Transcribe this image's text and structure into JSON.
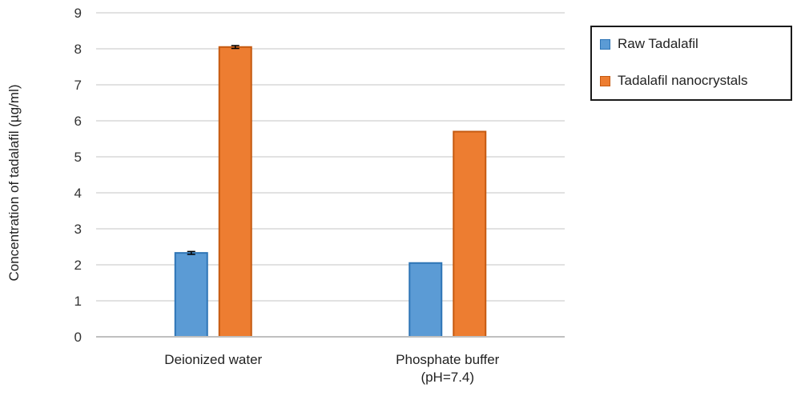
{
  "chart_data": {
    "type": "bar",
    "title": "",
    "xlabel": "",
    "ylabel": "Concentration of tadalafil (µg/ml)",
    "ylim": [
      0,
      9
    ],
    "yticks": [
      0,
      1,
      2,
      3,
      4,
      5,
      6,
      7,
      8,
      9
    ],
    "grid": true,
    "legend_position": "right",
    "categories": [
      [
        "Deionized water"
      ],
      [
        "Phosphate buffer",
        "(pH=7.4)"
      ]
    ],
    "series": [
      {
        "name": "Raw Tadalafil",
        "color": "#5b9bd5",
        "edge": "#2e75b6",
        "values": [
          2.33,
          2.05
        ],
        "error": [
          0.04,
          null
        ]
      },
      {
        "name": "Tadalafil nanocrystals",
        "color": "#ed7d31",
        "edge": "#c55a11",
        "values": [
          8.05,
          5.7
        ],
        "error": [
          0.04,
          null
        ]
      }
    ]
  }
}
